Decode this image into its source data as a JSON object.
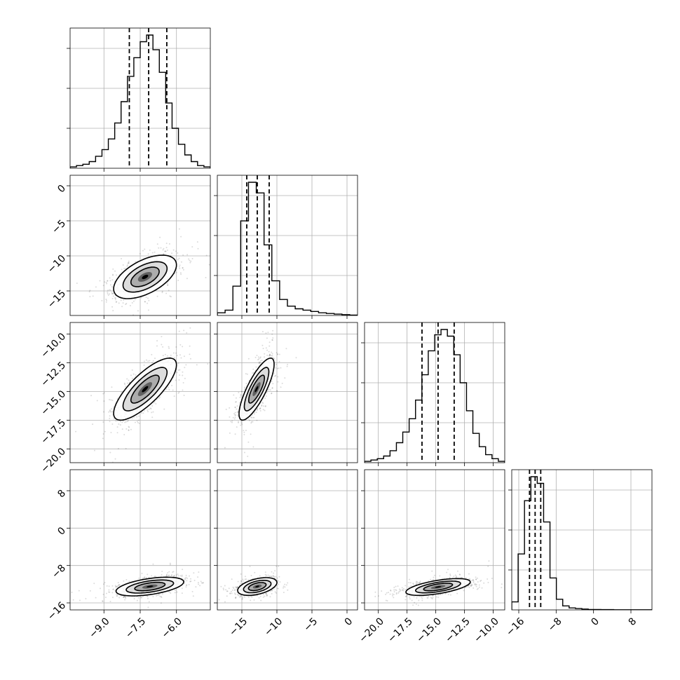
{
  "chart_data": {
    "type": "corner",
    "grid": true,
    "parameters": [
      {
        "name": "",
        "range": [
          -10.4,
          -4.6
        ],
        "ticks": [
          "−9.0",
          "−7.5",
          "−6.0"
        ],
        "tick_values": [
          -9.0,
          -7.5,
          -6.0
        ],
        "quantiles": [
          -7.95,
          -7.15,
          -6.4
        ]
      },
      {
        "name": "",
        "range": [
          -18.5,
          1.5
        ],
        "ticks": [
          "−15",
          "−10",
          "−5",
          "0"
        ],
        "tick_values": [
          -15,
          -10,
          -5,
          0
        ],
        "quantiles": [
          -14.3,
          -12.8,
          -11.1
        ]
      },
      {
        "name": "",
        "range": [
          -21.2,
          -9.0
        ],
        "ticks": [
          "−20.0",
          "−17.5",
          "−15.0",
          "−12.5",
          "−10.0"
        ],
        "tick_values": [
          -20.0,
          -17.5,
          -15.0,
          -12.5,
          -10.0
        ],
        "quantiles": [
          -16.2,
          -14.8,
          -13.4
        ]
      },
      {
        "name": "",
        "range": [
          -17.5,
          12.5
        ],
        "ticks": [
          "−16",
          "−8",
          "0",
          "8"
        ],
        "tick_values": [
          -16,
          -8,
          0,
          8
        ],
        "quantiles": [
          -13.7,
          -12.5,
          -11.3
        ]
      }
    ],
    "histograms": [
      [
        1,
        2,
        3,
        5,
        9,
        14,
        22,
        34,
        50,
        69,
        83,
        95,
        100,
        89,
        72,
        49,
        30,
        18,
        10,
        5,
        2,
        1
      ],
      [
        2,
        4,
        22,
        71,
        100,
        92,
        53,
        26,
        12,
        7,
        5,
        4,
        3,
        2,
        1.5,
        1,
        0.6,
        0.3
      ],
      [
        1,
        2,
        3,
        5,
        9,
        15,
        23,
        33,
        47,
        66,
        84,
        96,
        100,
        95,
        81,
        60,
        39,
        22,
        12,
        6,
        3,
        1
      ],
      [
        6,
        42,
        82,
        100,
        95,
        66,
        24,
        8,
        3,
        1.5,
        1,
        0.6,
        0.3,
        0.3,
        0.2,
        0.2,
        0.1,
        0.1,
        0.1,
        0.1,
        0.1,
        0.1
      ]
    ],
    "pairs": [
      {
        "x": 0,
        "y": 1,
        "center": [
          -7.3,
          -13.0
        ],
        "sd": [
          0.65,
          1.55
        ],
        "rho": 0.55
      },
      {
        "x": 0,
        "y": 2,
        "center": [
          -7.3,
          -14.8
        ],
        "sd": [
          0.65,
          1.35
        ],
        "rho": 0.78
      },
      {
        "x": 1,
        "y": 2,
        "center": [
          -12.9,
          -14.8
        ],
        "sd": [
          1.25,
          1.35
        ],
        "rho": 0.8
      },
      {
        "x": 0,
        "y": 3,
        "center": [
          -7.1,
          -12.5
        ],
        "sd": [
          0.7,
          1.0
        ],
        "rho": 0.5
      },
      {
        "x": 1,
        "y": 3,
        "center": [
          -12.8,
          -12.5
        ],
        "sd": [
          1.4,
          0.95
        ],
        "rho": 0.45
      },
      {
        "x": 2,
        "y": 3,
        "center": [
          -14.8,
          -12.6
        ],
        "sd": [
          1.4,
          0.9
        ],
        "rho": 0.6
      }
    ]
  }
}
